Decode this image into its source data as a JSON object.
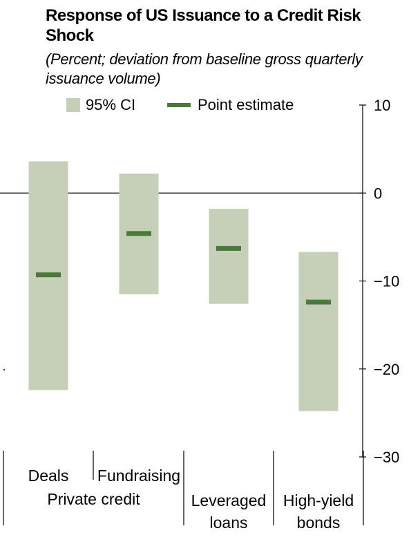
{
  "chart_data": {
    "type": "range_bar_with_points",
    "title": "Response of US Issuance to a Credit Risk Shock",
    "subtitle": "(Percent; deviation from baseline gross quarterly issuance volume)",
    "legend": {
      "ci_label": "95% CI",
      "point_label": "Point estimate",
      "placement": "top"
    },
    "y_axis": {
      "min": -30,
      "max": 10,
      "side": "right",
      "ticks": [
        {
          "value": 10,
          "label": "10"
        },
        {
          "value": 0,
          "label": "0"
        },
        {
          "value": -10,
          "label": "−10"
        },
        {
          "value": -20,
          "label": "−20"
        },
        {
          "value": -30,
          "label": "−30"
        }
      ]
    },
    "reference_line": 0,
    "categories": [
      {
        "label": "Deals",
        "ci_low": -22.4,
        "ci_high": 3.6,
        "point": -9.3
      },
      {
        "label": "Fundraising",
        "ci_low": -11.5,
        "ci_high": 2.2,
        "point": -4.6
      },
      {
        "label": "Leveraged\nloans",
        "ci_low": -12.6,
        "ci_high": -1.8,
        "point": -6.3
      },
      {
        "label": "High-yield\nbonds",
        "ci_low": -24.8,
        "ci_high": -6.7,
        "point": -12.4
      }
    ],
    "groups": [
      {
        "label": "Private credit",
        "members": [
          0,
          1
        ]
      }
    ],
    "colors": {
      "ci": "#c6cfb8",
      "point": "#4a7a3a",
      "axis": "#000000"
    }
  }
}
